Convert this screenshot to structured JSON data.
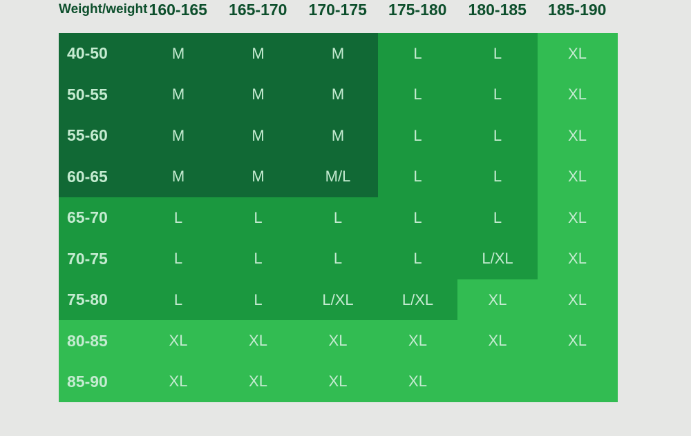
{
  "corner_label": "Weight/weight",
  "height_columns": [
    "160-165",
    "165-170",
    "170-175",
    "175-180",
    "180-185",
    "185-190"
  ],
  "rows": [
    {
      "weight": "40-50",
      "sizes": [
        "M",
        "M",
        "M",
        "L",
        "L",
        "XL"
      ]
    },
    {
      "weight": "50-55",
      "sizes": [
        "M",
        "M",
        "M",
        "L",
        "L",
        "XL"
      ]
    },
    {
      "weight": "55-60",
      "sizes": [
        "M",
        "M",
        "M",
        "L",
        "L",
        "XL"
      ]
    },
    {
      "weight": "60-65",
      "sizes": [
        "M",
        "M",
        "M/L",
        "L",
        "L",
        "XL"
      ]
    },
    {
      "weight": "65-70",
      "sizes": [
        "L",
        "L",
        "L",
        "L",
        "L",
        "XL"
      ]
    },
    {
      "weight": "70-75",
      "sizes": [
        "L",
        "L",
        "L",
        "L",
        "L/XL",
        "XL"
      ]
    },
    {
      "weight": "75-80",
      "sizes": [
        "L",
        "L",
        "L/XL",
        "L/XL",
        "XL",
        "XL"
      ]
    },
    {
      "weight": "80-85",
      "sizes": [
        "XL",
        "XL",
        "XL",
        "XL",
        "XL",
        "XL"
      ]
    },
    {
      "weight": "85-90",
      "sizes": [
        "XL",
        "XL",
        "XL",
        "XL",
        "",
        ""
      ]
    }
  ],
  "colors": {
    "background": "#e6e7e5",
    "header_text": "#0d4f2c",
    "cell_text": "#c5ebd1",
    "zone_dark": "#116935",
    "zone_mid": "#1b983f",
    "zone_light": "#32bc52"
  }
}
